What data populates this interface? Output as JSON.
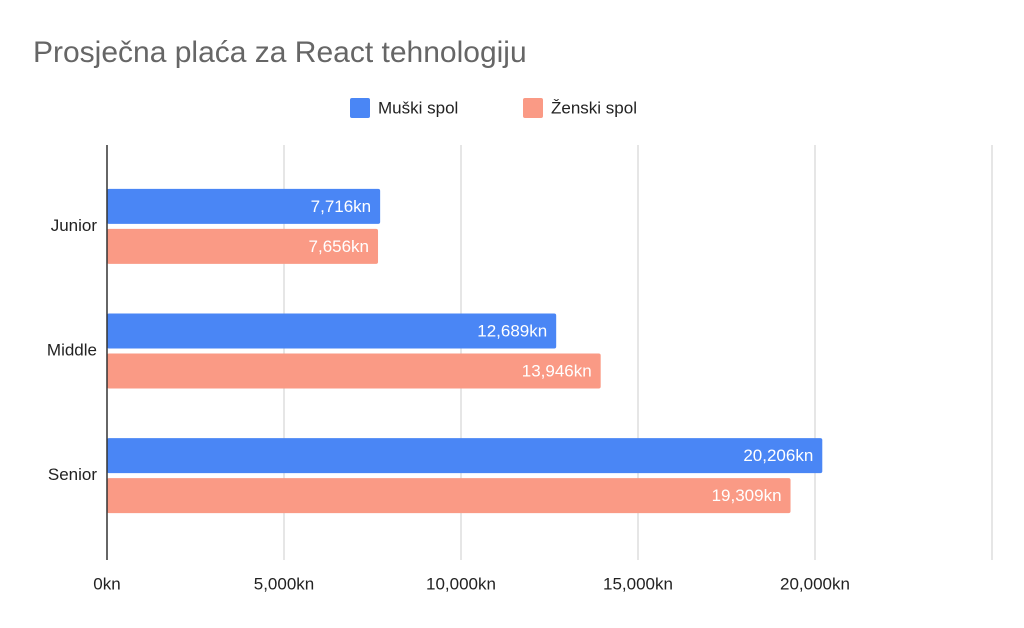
{
  "chart_data": {
    "type": "hbar",
    "title": "Prosječna plaća za React tehnologiju",
    "categories": [
      "Junior",
      "Middle",
      "Senior"
    ],
    "series": [
      {
        "name": "Muški spol",
        "color": "#4a86f5",
        "values": [
          7716,
          12689,
          20206
        ],
        "value_labels": [
          "7,716kn",
          "12,689kn",
          "20,206kn"
        ]
      },
      {
        "name": "Ženski spol",
        "color": "#fa9a85",
        "values": [
          7656,
          13946,
          19309
        ],
        "value_labels": [
          "7,656kn",
          "13,946kn",
          "19,309kn"
        ]
      }
    ],
    "xlim": [
      0,
      25000
    ],
    "xticks": [
      {
        "value": 0,
        "label": "0kn"
      },
      {
        "value": 5000,
        "label": "5,000kn"
      },
      {
        "value": 10000,
        "label": "10,000kn"
      },
      {
        "value": 15000,
        "label": "15,000kn"
      },
      {
        "value": 20000,
        "label": "20,000kn"
      }
    ],
    "grid": true
  }
}
